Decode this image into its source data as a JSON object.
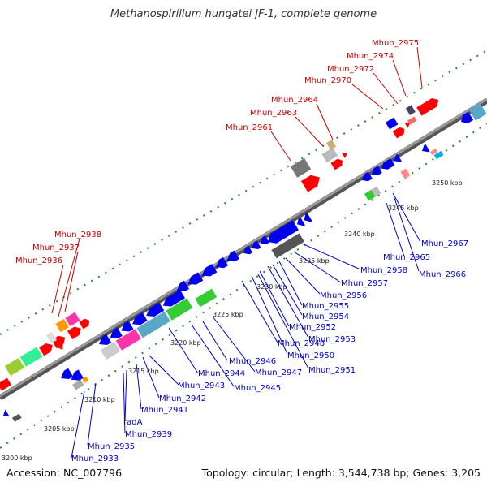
{
  "title": "Methanospirillum hungatei JF-1, complete genome",
  "footer": {
    "accession": "Accession: NC_007796",
    "summary": "Topology: circular; Length: 3,544,738 bp; Genes: 3,205"
  },
  "colors": {
    "forward_label": "#cc0000",
    "reverse_label": "#0000cc",
    "backbone": "#8a8a8a",
    "track_dots": "#228b22",
    "gene_red": "#ff0000",
    "gene_blue": "#0000ee",
    "gene_grey": "#a8a8a8",
    "gene_green": "#33cc33",
    "gene_pink": "#ff33aa",
    "gene_orange": "#ff9900",
    "gene_teal": "#5aa8c8"
  },
  "ruler": {
    "unit": "kbp",
    "ticks": [
      "3200 kbp",
      "3205 kbp",
      "3210 kbp",
      "3215 kbp",
      "3220 kbp",
      "3225 kbp",
      "3230 kbp",
      "3235 kbp",
      "3240 kbp",
      "3245 kbp",
      "3250 kbp"
    ]
  },
  "forward_labels": [
    "Mhun_2975",
    "Mhun_2974",
    "Mhun_2972",
    "Mhun_2970",
    "Mhun_2964",
    "Mhun_2963",
    "Mhun_2961",
    "Mhun_2938",
    "Mhun_2937",
    "Mhun_2936"
  ],
  "reverse_labels": [
    "Mhun_2967",
    "Mhun_2965",
    "Mhun_2966",
    "Mhun_2958",
    "Mhun_2957",
    "Mhun_2956",
    "Mhun_2955",
    "Mhun_2954",
    "Mhun_2953",
    "Mhun_2952",
    "Mhun_2950",
    "Mhun_2948",
    "Mhun_2951",
    "Mhun_2946",
    "Mhun_2947",
    "Mhun_2944",
    "Mhun_2945",
    "Mhun_2943",
    "Mhun_2942",
    "Mhun_2941",
    "radA",
    "Mhun_2939",
    "Mhun_2935",
    "Mhun_2933"
  ]
}
